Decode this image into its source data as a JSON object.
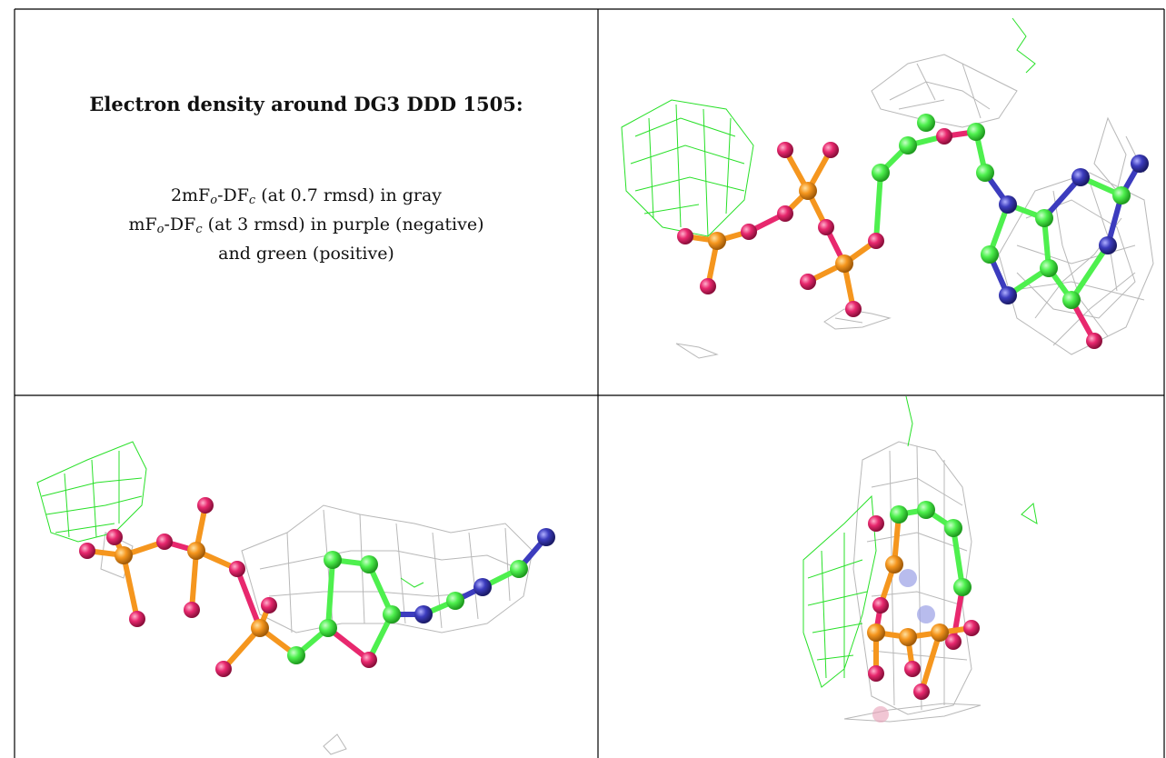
{
  "caption": {
    "title": "Electron density around DG3 DDD 1505:",
    "line1": {
      "a": "2mF",
      "a_sub": "o",
      "b": "-DF",
      "b_sub": "c",
      "rest": " (at 0.7 rmsd) in gray"
    },
    "line2": {
      "a": "mF",
      "a_sub": "o",
      "b": "-DF",
      "b_sub": "c",
      "rest": " (at 3 rmsd) in purple (negative)"
    },
    "line3": "and green (positive)"
  },
  "colors": {
    "carbon": "#4ef04e",
    "oxygen": "#e8286e",
    "phosphorus": "#f5961e",
    "nitrogen": "#3c3cbe",
    "density_2fofc": "#b8b8b8",
    "density_positive": "#28e028",
    "table_border": "#000000"
  },
  "views": [
    {
      "name": "view-top-right",
      "depicts": "molecule-view-1"
    },
    {
      "name": "view-bottom-left",
      "depicts": "molecule-view-2"
    },
    {
      "name": "view-bottom-right",
      "depicts": "molecule-view-3"
    }
  ]
}
